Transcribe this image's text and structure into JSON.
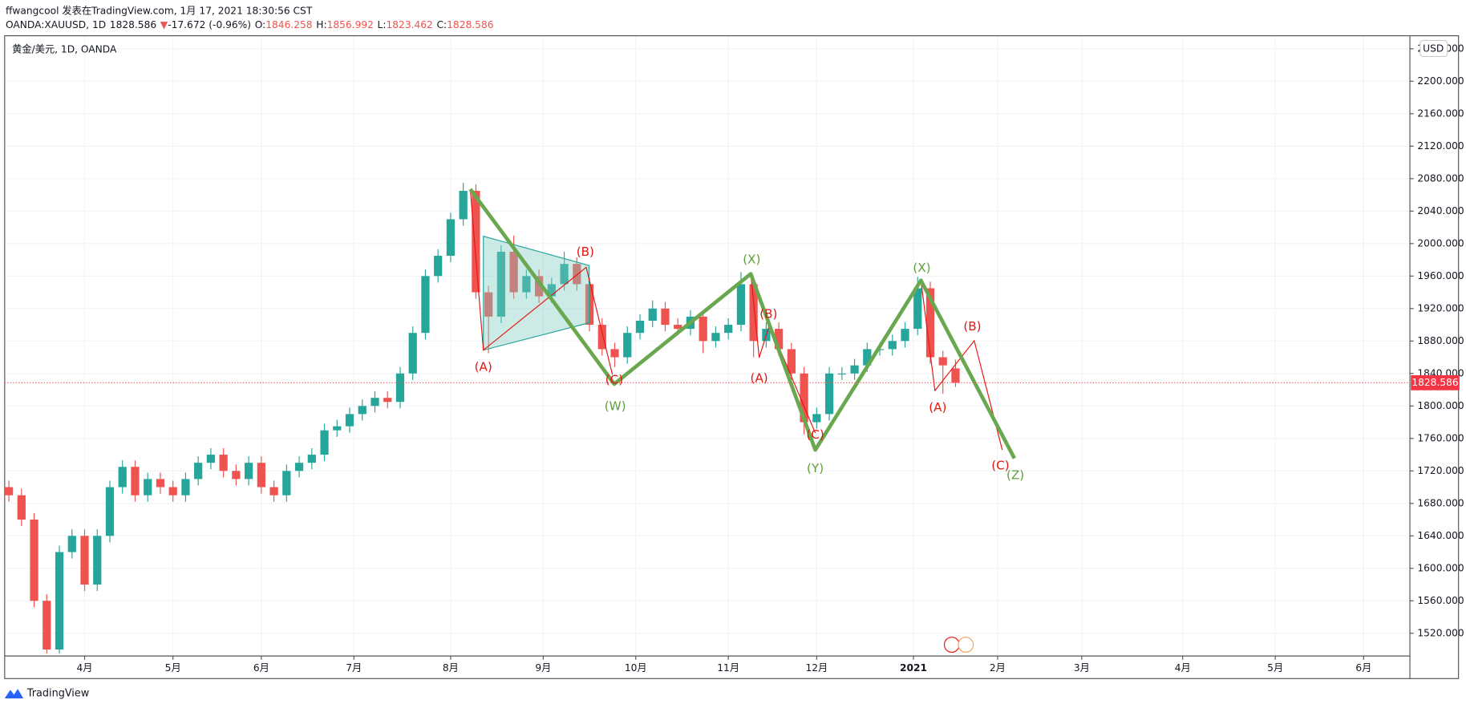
{
  "header": {
    "author_line": "ffwangcool 发表在TradingView.com, 1月 17, 2021 18:30:56 CST",
    "symbol": "OANDA:XAUUSD, 1D",
    "arrow": "▼",
    "change": "-17.672 (-0.96%)",
    "o_label": "O:",
    "h_label": "H:",
    "l_label": "L:",
    "c_label": "C:",
    "brand": "TradingView"
  },
  "chart_data": {
    "type": "candlestick",
    "title": "黄金/美元, 1D, OANDA",
    "currency": "USD",
    "up_color": "#26a69a",
    "down_color": "#ef5350",
    "grid": true,
    "x": [
      0,
      3,
      6,
      9,
      12,
      15,
      18,
      21,
      24,
      27,
      30,
      33,
      36,
      39,
      42,
      45,
      48,
      51,
      54,
      57,
      60,
      63,
      66,
      69,
      72,
      75,
      78,
      81,
      84,
      87,
      90,
      93,
      96,
      99,
      102,
      105,
      108,
      111,
      114,
      117,
      120,
      123,
      126,
      129,
      132,
      135,
      138,
      141,
      144,
      147,
      150,
      153,
      156,
      159,
      162,
      165,
      168,
      171,
      174,
      177,
      180,
      183,
      186,
      189,
      192,
      195,
      198,
      201,
      204,
      207,
      210,
      213,
      216,
      219,
      222,
      225
    ],
    "open": [
      1700,
      1690,
      1660,
      1560,
      1500,
      1620,
      1640,
      1580,
      1640,
      1700,
      1725,
      1690,
      1710,
      1700,
      1690,
      1710,
      1730,
      1740,
      1720,
      1710,
      1730,
      1700,
      1690,
      1720,
      1730,
      1740,
      1770,
      1775,
      1790,
      1800,
      1810,
      1805,
      1840,
      1890,
      1960,
      1985,
      2030,
      2065,
      1940,
      1910,
      1990,
      1940,
      1960,
      1935,
      1950,
      1975,
      1950,
      1900,
      1870,
      1860,
      1890,
      1905,
      1920,
      1900,
      1895,
      1910,
      1880,
      1890,
      1900,
      1950,
      1880,
      1895,
      1870,
      1840,
      1780,
      1790,
      1840,
      1840,
      1850,
      1870,
      1870,
      1880,
      1895,
      1945,
      1860,
      1846.258
    ],
    "high": [
      1708,
      1698,
      1668,
      1568,
      1628,
      1648,
      1648,
      1648,
      1708,
      1733,
      1733,
      1718,
      1718,
      1708,
      1718,
      1738,
      1748,
      1748,
      1728,
      1738,
      1738,
      1708,
      1728,
      1738,
      1748,
      1778,
      1783,
      1798,
      1808,
      1818,
      1818,
      1848,
      1898,
      1968,
      1993,
      2038,
      2075,
      2073,
      1948,
      1998,
      2010,
      1968,
      1968,
      1958,
      1990,
      1983,
      1958,
      1908,
      1878,
      1898,
      1913,
      1930,
      1928,
      1908,
      1918,
      1918,
      1898,
      1908,
      1965,
      1958,
      1903,
      1903,
      1878,
      1848,
      1798,
      1848,
      1848,
      1858,
      1878,
      1878,
      1888,
      1903,
      1959,
      1953,
      1868,
      1856.992
    ],
    "low": [
      1682,
      1652,
      1552,
      1495,
      1495,
      1612,
      1572,
      1572,
      1632,
      1692,
      1682,
      1682,
      1692,
      1682,
      1682,
      1702,
      1722,
      1712,
      1702,
      1702,
      1692,
      1682,
      1682,
      1712,
      1722,
      1732,
      1762,
      1767,
      1782,
      1792,
      1797,
      1797,
      1832,
      1882,
      1952,
      1977,
      2022,
      1932,
      1865,
      1902,
      1932,
      1932,
      1927,
      1927,
      1942,
      1942,
      1892,
      1862,
      1848,
      1852,
      1882,
      1897,
      1892,
      1887,
      1887,
      1865,
      1872,
      1882,
      1892,
      1860,
      1872,
      1862,
      1832,
      1765,
      1772,
      1782,
      1832,
      1832,
      1842,
      1862,
      1862,
      1872,
      1887,
      1852,
      1815,
      1823.462
    ],
    "close": [
      1690,
      1660,
      1560,
      1500,
      1620,
      1640,
      1580,
      1640,
      1700,
      1725,
      1690,
      1710,
      1700,
      1690,
      1710,
      1730,
      1740,
      1720,
      1710,
      1730,
      1700,
      1690,
      1720,
      1730,
      1740,
      1770,
      1775,
      1790,
      1800,
      1810,
      1805,
      1840,
      1890,
      1960,
      1985,
      2030,
      2065,
      1940,
      1910,
      1990,
      1940,
      1960,
      1935,
      1950,
      1975,
      1950,
      1900,
      1870,
      1860,
      1890,
      1905,
      1920,
      1900,
      1895,
      1910,
      1880,
      1890,
      1900,
      1950,
      1880,
      1895,
      1870,
      1840,
      1780,
      1790,
      1840,
      1840,
      1850,
      1870,
      1870,
      1880,
      1895,
      1945,
      1860,
      1850,
      1828.586
    ],
    "xlim": [
      -1,
      333
    ],
    "xticks": [
      {
        "value": 18,
        "label": "4月"
      },
      {
        "value": 39,
        "label": "5月"
      },
      {
        "value": 60,
        "label": "6月"
      },
      {
        "value": 82,
        "label": "7月"
      },
      {
        "value": 105,
        "label": "8月"
      },
      {
        "value": 127,
        "label": "9月"
      },
      {
        "value": 149,
        "label": "10月"
      },
      {
        "value": 171,
        "label": "11月"
      },
      {
        "value": 192,
        "label": "12月"
      },
      {
        "value": 215,
        "label": "2021"
      },
      {
        "value": 235,
        "label": "2月"
      },
      {
        "value": 255,
        "label": "3月"
      },
      {
        "value": 279,
        "label": "4月"
      },
      {
        "value": 301,
        "label": "5月"
      },
      {
        "value": 322,
        "label": "6月"
      }
    ],
    "ylim": [
      1492,
      2256
    ],
    "yticks": [
      {
        "value": 1520,
        "label": "1520.000"
      },
      {
        "value": 1560,
        "label": "1560.000"
      },
      {
        "value": 1600,
        "label": "1600.000"
      },
      {
        "value": 1640,
        "label": "1640.000"
      },
      {
        "value": 1680,
        "label": "1680.000"
      },
      {
        "value": 1720,
        "label": "1720.000"
      },
      {
        "value": 1760,
        "label": "1760.000"
      },
      {
        "value": 1800,
        "label": "1800.000"
      },
      {
        "value": 1840,
        "label": "1840.000"
      },
      {
        "value": 1880,
        "label": "1880.000"
      },
      {
        "value": 1920,
        "label": "1920.000"
      },
      {
        "value": 1960,
        "label": "1960.000"
      },
      {
        "value": 2000,
        "label": "2000.000"
      },
      {
        "value": 2040,
        "label": "2040.000"
      },
      {
        "value": 2080,
        "label": "2080.000"
      },
      {
        "value": 2120,
        "label": "2120.000"
      },
      {
        "value": 2160,
        "label": "2160.000"
      },
      {
        "value": 2200,
        "label": "2200.000"
      },
      {
        "value": 2240,
        "label": "2240.000"
      }
    ],
    "annotations": [
      {
        "text": "(A)",
        "color": "#e8140f"
      },
      {
        "text": "(B)",
        "color": "#e8140f"
      },
      {
        "text": "(C)",
        "color": "#e8140f"
      },
      {
        "text": "(W)",
        "color": "#5f9e3a"
      },
      {
        "text": "(X)",
        "color": "#5f9e3a"
      },
      {
        "text": "(B)",
        "color": "#e8140f"
      },
      {
        "text": "(A)",
        "color": "#e8140f"
      },
      {
        "text": "(C)",
        "color": "#e8140f"
      },
      {
        "text": "(Y)",
        "color": "#5f9e3a"
      },
      {
        "text": "(X)",
        "color": "#5f9e3a"
      },
      {
        "text": "(B)",
        "color": "#e8140f"
      },
      {
        "text": "(A)",
        "color": "#e8140f"
      },
      {
        "text": "(C)",
        "color": "#e8140f"
      },
      {
        "text": "(Z)",
        "color": "#5f9e3a"
      }
    ]
  }
}
